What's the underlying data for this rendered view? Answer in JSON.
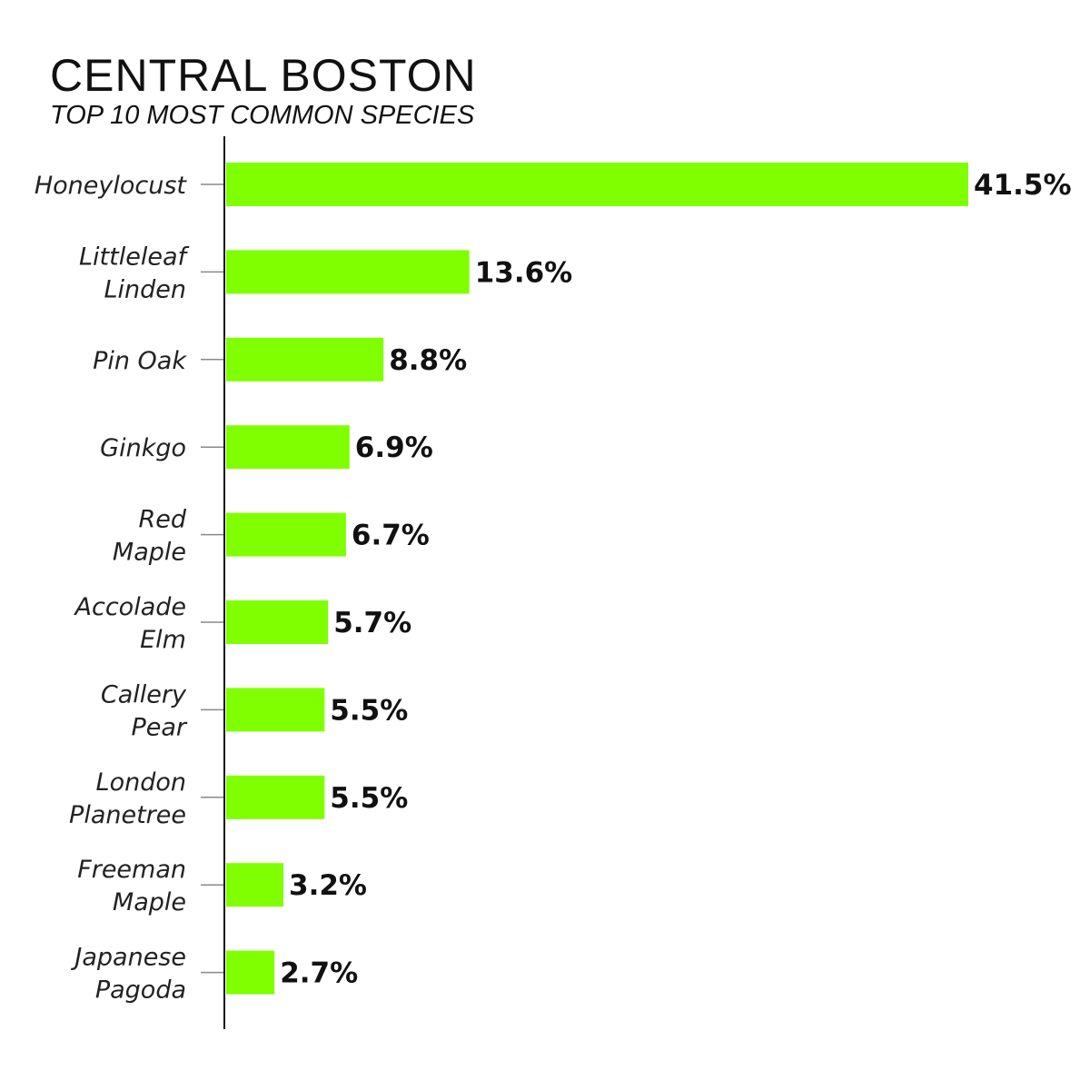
{
  "chart_data": {
    "type": "bar",
    "orientation": "horizontal",
    "title": "CENTRAL BOSTON",
    "subtitle": "TOP 10 MOST COMMON SPECIES",
    "categories": [
      [
        "Honeylocust"
      ],
      [
        "Littleleaf",
        "Linden"
      ],
      [
        "Pin Oak"
      ],
      [
        "Ginkgo"
      ],
      [
        "Red",
        "Maple"
      ],
      [
        "Accolade",
        "Elm"
      ],
      [
        "Callery",
        "Pear"
      ],
      [
        "London",
        "Planetree"
      ],
      [
        "Freeman",
        "Maple"
      ],
      [
        "Japanese",
        "Pagoda"
      ]
    ],
    "values": [
      41.5,
      13.6,
      8.8,
      6.9,
      6.7,
      5.7,
      5.5,
      5.5,
      3.2,
      2.7
    ],
    "value_labels": [
      "41.5%",
      "13.6%",
      "8.8%",
      "6.9%",
      "6.7%",
      "5.7%",
      "5.5%",
      "5.5%",
      "3.2%",
      "2.7%"
    ],
    "unit": "%",
    "xlim": [
      0,
      41.5
    ],
    "bar_color": "#7fff00",
    "axis_color": "#111111",
    "tick_color": "#888888",
    "grid": false,
    "legend": "none"
  }
}
